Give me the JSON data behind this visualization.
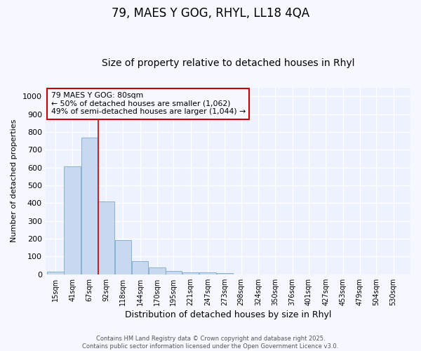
{
  "title1": "79, MAES Y GOG, RHYL, LL18 4QA",
  "title2": "Size of property relative to detached houses in Rhyl",
  "xlabel": "Distribution of detached houses by size in Rhyl",
  "ylabel": "Number of detached properties",
  "bar_labels": [
    "15sqm",
    "41sqm",
    "67sqm",
    "92sqm",
    "118sqm",
    "144sqm",
    "170sqm",
    "195sqm",
    "221sqm",
    "247sqm",
    "273sqm",
    "298sqm",
    "324sqm",
    "350sqm",
    "376sqm",
    "401sqm",
    "427sqm",
    "453sqm",
    "479sqm",
    "504sqm",
    "530sqm"
  ],
  "bar_values": [
    15,
    605,
    770,
    410,
    192,
    76,
    38,
    18,
    12,
    12,
    8,
    0,
    0,
    0,
    0,
    0,
    0,
    0,
    0,
    0,
    0
  ],
  "bar_color": "#c8d8f0",
  "bar_edge_color": "#7aaacc",
  "ylim": [
    0,
    1050
  ],
  "yticks": [
    0,
    100,
    200,
    300,
    400,
    500,
    600,
    700,
    800,
    900,
    1000
  ],
  "x_positions": [
    15,
    41,
    67,
    92,
    118,
    144,
    170,
    195,
    221,
    247,
    273,
    298,
    324,
    350,
    376,
    401,
    427,
    453,
    479,
    504,
    530
  ],
  "vline_x": 80,
  "vline_color": "#cc0000",
  "annotation_text": "79 MAES Y GOG: 80sqm\n← 50% of detached houses are smaller (1,062)\n49% of semi-detached houses are larger (1,044) →",
  "annotation_box_color": "#cc0000",
  "footer_text": "Contains HM Land Registry data © Crown copyright and database right 2025.\nContains public sector information licensed under the Open Government Licence v3.0.",
  "bg_color": "#f5f8ff",
  "plot_bg_color": "#eef2ff",
  "grid_color": "#ffffff",
  "title1_fontsize": 12,
  "title2_fontsize": 10,
  "bin_width": 25
}
